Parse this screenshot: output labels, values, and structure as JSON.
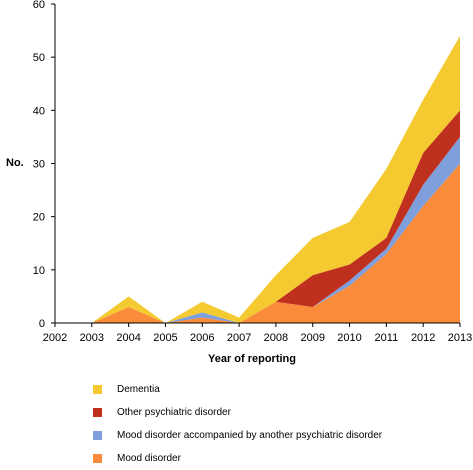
{
  "chart_data": {
    "type": "area",
    "stacked": true,
    "title": "",
    "xlabel": "Year of reporting",
    "ylabel": "No.",
    "x": [
      "2002",
      "2003",
      "2004",
      "2005",
      "2006",
      "2007",
      "2008",
      "2009",
      "2010",
      "2011",
      "2012",
      "2013"
    ],
    "ylim": [
      0,
      60
    ],
    "yticks": [
      0,
      10,
      20,
      30,
      40,
      50,
      60
    ],
    "grid": false,
    "legend_position": "bottom",
    "series": [
      {
        "name": "Mood disorder",
        "color": "#f98b3a",
        "values": [
          0,
          0,
          3,
          0,
          1,
          0,
          4,
          3,
          7,
          13,
          22,
          30
        ]
      },
      {
        "name": "Mood disorder accompanied by another psychiatric disorder",
        "color": "#7f9fdc",
        "values": [
          0,
          0,
          0,
          0,
          1,
          0,
          0,
          0,
          1,
          1,
          4,
          5
        ]
      },
      {
        "name": "Other psychiatric disorder",
        "color": "#c0301e",
        "values": [
          0,
          0,
          0,
          0,
          0,
          0,
          0,
          6,
          3,
          2,
          6,
          5
        ]
      },
      {
        "name": "Dementia",
        "color": "#f5c930",
        "values": [
          0,
          0,
          2,
          0,
          2,
          1,
          5,
          7,
          8,
          13,
          10,
          14
        ]
      }
    ],
    "legend_order": [
      3,
      2,
      1,
      0
    ]
  }
}
